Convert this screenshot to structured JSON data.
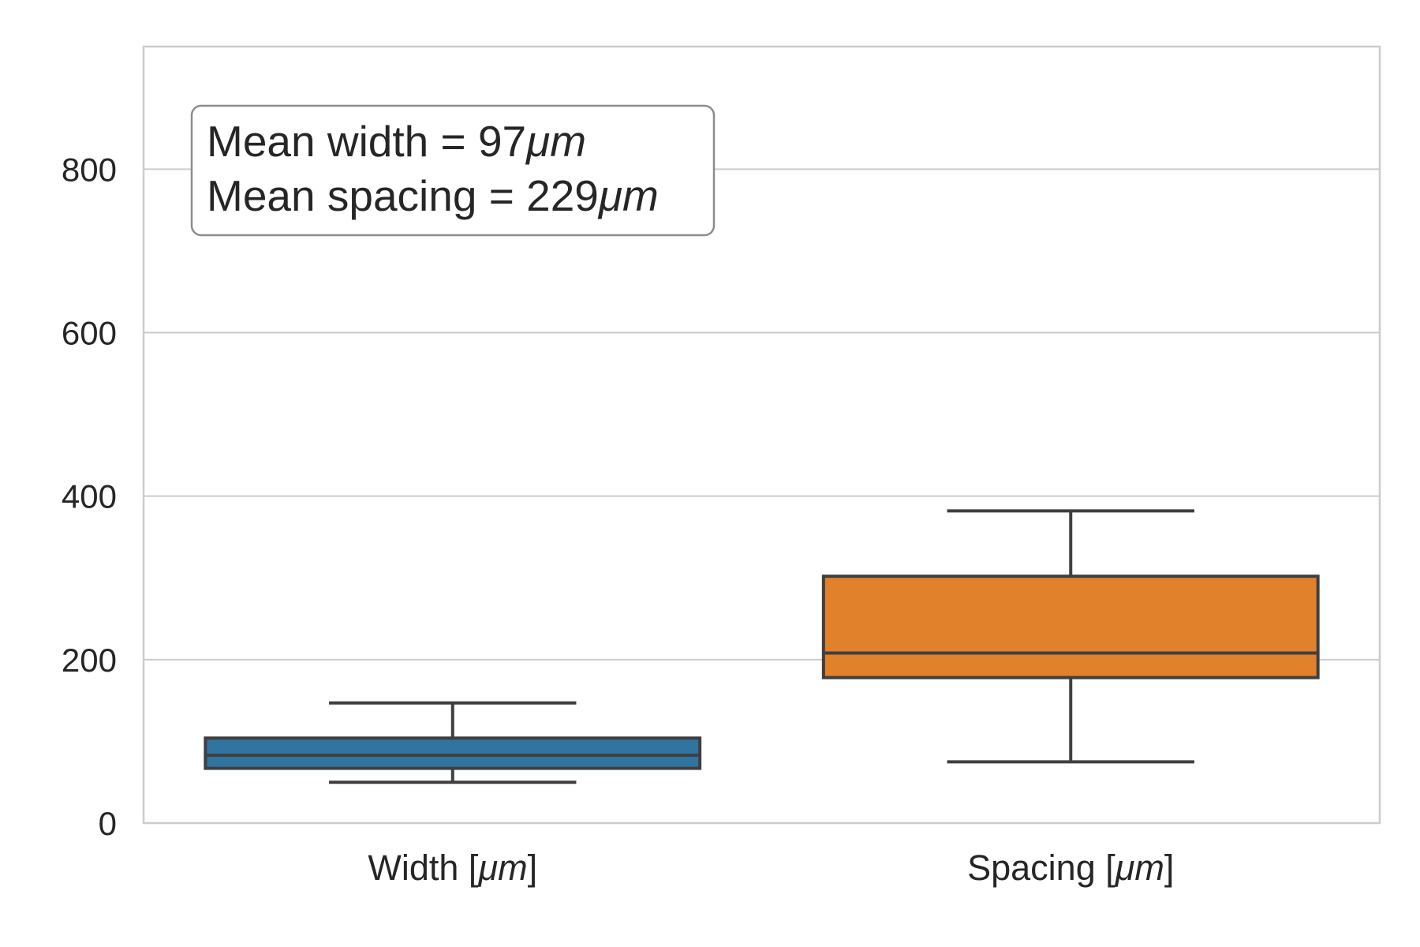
{
  "chart_data": {
    "type": "box",
    "title": "",
    "xlabel": "",
    "ylabel": "",
    "ylim": [
      0,
      950
    ],
    "yticks": [
      0,
      200,
      400,
      600,
      800
    ],
    "grid": "horizontal",
    "categories": [
      {
        "name": "Width",
        "unit": "μm",
        "suffix": "]",
        "prefix": " ["
      },
      {
        "name": "Spacing",
        "unit": "μm",
        "suffix": "]",
        "prefix": " ["
      }
    ],
    "boxes": [
      {
        "category": "Width [μm]",
        "whisker_low": 50,
        "q1": 67,
        "median": 83,
        "q3": 104,
        "whisker_high": 147,
        "color": "#3274a1"
      },
      {
        "category": "Spacing [μm]",
        "whisker_low": 75,
        "q1": 178,
        "median": 208,
        "q3": 302,
        "whisker_high": 382,
        "color": "#e1812c"
      }
    ],
    "annotation": {
      "placement": "top-left",
      "lines": [
        {
          "text": "Mean width = 97",
          "unit": "μm"
        },
        {
          "text": "Mean spacing = 229",
          "unit": "μm"
        }
      ]
    },
    "colors": {
      "grid": "#cccccc",
      "frame": "#cccccc",
      "box_edge": "#3f3f3f",
      "text": "#262626"
    }
  }
}
